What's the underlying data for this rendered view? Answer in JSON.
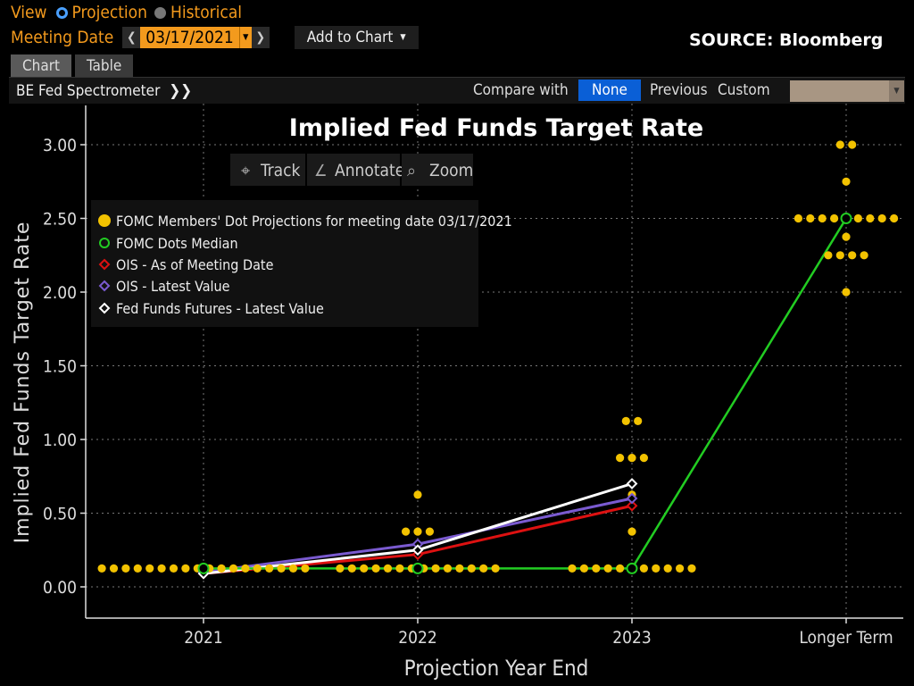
{
  "toolbar": {
    "view_label": "View",
    "radio_projection": "Projection",
    "radio_historical": "Historical",
    "meeting_date_label": "Meeting Date",
    "meeting_date_value": "03/17/2021",
    "add_to_chart": "Add to Chart",
    "source": "SOURCE: Bloomberg"
  },
  "tabs": [
    {
      "label": "Chart",
      "active": true
    },
    {
      "label": "Table",
      "active": false
    }
  ],
  "subbar": {
    "spectrometer": "BE Fed Spectrometer",
    "compare_with": "Compare with",
    "options": [
      "None",
      "Previous",
      "Custom"
    ],
    "selected": "None"
  },
  "chart_tools": [
    "Track",
    "Annotate",
    "Zoom"
  ],
  "colors": {
    "accent": "#f39a1d",
    "dots": "#f2c200",
    "median": "#22cc22",
    "ois_meeting": "#dd1111",
    "ois_latest": "#7a5ad0",
    "futures": "#ffffff",
    "selected_button": "#0a5fd6"
  },
  "chart_data": {
    "type": "scatter",
    "title": "Implied Fed Funds Target Rate",
    "xlabel": "Projection Year End",
    "ylabel": "Implied Fed Funds Target Rate",
    "categories": [
      "2021",
      "2022",
      "2023",
      "Longer Term"
    ],
    "yticks": [
      "0.00",
      "0.50",
      "1.00",
      "1.50",
      "2.00",
      "2.50",
      "3.00"
    ],
    "ylim": [
      -0.2,
      3.2
    ],
    "grid": true,
    "legend_position": "top-left",
    "dot_groups": [
      {
        "category": "2021",
        "points": [
          {
            "value": 0.125,
            "count": 18
          }
        ]
      },
      {
        "category": "2022",
        "points": [
          {
            "value": 0.125,
            "count": 14
          },
          {
            "value": 0.375,
            "count": 3
          },
          {
            "value": 0.625,
            "count": 1
          }
        ]
      },
      {
        "category": "2023",
        "points": [
          {
            "value": 0.125,
            "count": 11
          },
          {
            "value": 0.375,
            "count": 1
          },
          {
            "value": 0.625,
            "count": 1
          },
          {
            "value": 0.875,
            "count": 3
          },
          {
            "value": 1.125,
            "count": 2
          }
        ]
      },
      {
        "category": "Longer Term",
        "points": [
          {
            "value": 2.0,
            "count": 1
          },
          {
            "value": 2.25,
            "count": 4
          },
          {
            "value": 2.375,
            "count": 1
          },
          {
            "value": 2.5,
            "count": 9
          },
          {
            "value": 2.75,
            "count": 1
          },
          {
            "value": 3.0,
            "count": 2
          }
        ]
      }
    ],
    "series": [
      {
        "name": "FOMC Members' Dot Projections for meeting date 03/17/2021",
        "marker": "dot"
      },
      {
        "name": "FOMC Dots Median",
        "marker": "circle",
        "values": [
          0.125,
          0.125,
          0.125,
          2.5
        ]
      },
      {
        "name": "OIS - As of Meeting Date",
        "marker": "diamond",
        "values": [
          0.09,
          0.22,
          0.55
        ]
      },
      {
        "name": "OIS - Latest Value",
        "marker": "diamond",
        "values": [
          0.1,
          0.29,
          0.6
        ]
      },
      {
        "name": "Fed Funds Futures - Latest Value",
        "marker": "diamond",
        "values": [
          0.09,
          0.25,
          0.7
        ]
      }
    ]
  }
}
